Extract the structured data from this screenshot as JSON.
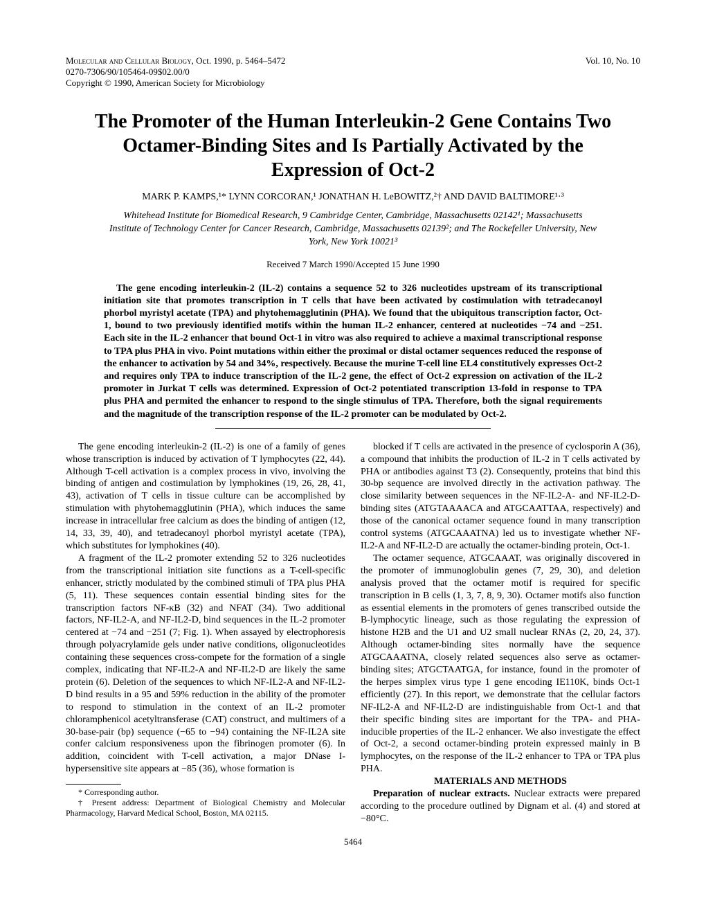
{
  "header": {
    "journal": "Molecular and Cellular Biology",
    "issue_date": ", Oct. 1990, p. 5464–5472",
    "issn_line": "0270-7306/90/105464-09$02.00/0",
    "copyright": "Copyright © 1990, American Society for Microbiology",
    "vol": "Vol. 10, No. 10"
  },
  "title": "The Promoter of the Human Interleukin-2 Gene Contains Two Octamer-Binding Sites and Is Partially Activated by the Expression of Oct-2",
  "authors": "MARK P. KAMPS,¹* LYNN CORCORAN,¹ JONATHAN H. LeBOWITZ,²† AND DAVID BALTIMORE¹·³",
  "affiliations": "Whitehead Institute for Biomedical Research, 9 Cambridge Center, Cambridge, Massachusetts 02142¹; Massachusetts Institute of Technology Center for Cancer Research, Cambridge, Massachusetts 02139²; and The Rockefeller University, New York, New York 10021³",
  "received": "Received 7 March 1990/Accepted 15 June 1990",
  "abstract": "The gene encoding interleukin-2 (IL-2) contains a sequence 52 to 326 nucleotides upstream of its transcriptional initiation site that promotes transcription in T cells that have been activated by costimulation with tetradecanoyl phorbol myristyl acetate (TPA) and phytohemagglutinin (PHA). We found that the ubiquitous transcription factor, Oct-1, bound to two previously identified motifs within the human IL-2 enhancer, centered at nucleotides −74 and −251. Each site in the IL-2 enhancer that bound Oct-1 in vitro was also required to achieve a maximal transcriptional response to TPA plus PHA in vivo. Point mutations within either the proximal or distal octamer sequences reduced the response of the enhancer to activation by 54 and 34%, respectively. Because the murine T-cell line EL4 constitutively expresses Oct-2 and requires only TPA to induce transcription of the IL-2 gene, the effect of Oct-2 expression on activation of the IL-2 promoter in Jurkat T cells was determined. Expression of Oct-2 potentiated transcription 13-fold in response to TPA plus PHA and permited the enhancer to respond to the single stimulus of TPA. Therefore, both the signal requirements and the magnitude of the transcription response of the IL-2 promoter can be modulated by Oct-2.",
  "body": {
    "p1": "The gene encoding interleukin-2 (IL-2) is one of a family of genes whose transcription is induced by activation of T lymphocytes (22, 44). Although T-cell activation is a complex process in vivo, involving the binding of antigen and costimulation by lymphokines (19, 26, 28, 41, 43), activation of T cells in tissue culture can be accomplished by stimulation with phytohemagglutinin (PHA), which induces the same increase in intracellular free calcium as does the binding of antigen (12, 14, 33, 39, 40), and tetradecanoyl phorbol myristyl acetate (TPA), which substitutes for lymphokines (40).",
    "p2": "A fragment of the IL-2 promoter extending 52 to 326 nucleotides from the transcriptional initiation site functions as a T-cell-specific enhancer, strictly modulated by the combined stimuli of TPA plus PHA (5, 11). These sequences contain essential binding sites for the transcription factors NF-κB (32) and NFAT (34). Two additional factors, NF-IL2-A, and NF-IL2-D, bind sequences in the IL-2 promoter centered at −74 and −251 (7; Fig. 1). When assayed by electrophoresis through polyacrylamide gels under native conditions, oligonucleotides containing these sequences cross-compete for the formation of a single complex, indicating that NF-IL2-A and NF-IL2-D are likely the same protein (6). Deletion of the sequences to which NF-IL2-A and NF-IL2-D bind results in a 95 and 59% reduction in the ability of the promoter to respond to stimulation in the context of an IL-2 promoter chloramphenicol acetyltransferase (CAT) construct, and multimers of a 30-base-pair (bp) sequence (−65 to −94) containing the NF-IL2A site confer calcium responsiveness upon the fibrinogen promoter (6). In addition, coincident with T-cell activation, a major DNase I-hypersensitive site appears at −85 (36), whose formation is",
    "p3": "blocked if T cells are activated in the presence of cyclosporin A (36), a compound that inhibits the production of IL-2 in T cells activated by PHA or antibodies against T3 (2). Consequently, proteins that bind this 30-bp sequence are involved directly in the activation pathway. The close similarity between sequences in the NF-IL2-A- and NF-IL2-D-binding sites (ATGTAAAACA and ATGCAATTAA, respectively) and those of the canonical octamer sequence found in many transcription control systems (ATGCAAATNA) led us to investigate whether NF-IL2-A and NF-IL2-D are actually the octamer-binding protein, Oct-1.",
    "p4": "The octamer sequence, ATGCAAAT, was originally discovered in the promoter of immunoglobulin genes (7, 29, 30), and deletion analysis proved that the octamer motif is required for specific transcription in B cells (1, 3, 7, 8, 9, 30). Octamer motifs also function as essential elements in the promoters of genes transcribed outside the B-lymphocytic lineage, such as those regulating the expression of histone H2B and the U1 and U2 small nuclear RNAs (2, 20, 24, 37). Although octamer-binding sites normally have the sequence ATGCAAATNA, closely related sequences also serve as octamer-binding sites; ATGCTAATGA, for instance, found in the promoter of the herpes simplex virus type 1 gene encoding IE110K, binds Oct-1 efficiently (27). In this report, we demonstrate that the cellular factors NF-IL2-A and NF-IL2-D are indistinguishable from Oct-1 and that their specific binding sites are important for the TPA- and PHA-inducible properties of the IL-2 enhancer. We also investigate the effect of Oct-2, a second octamer-binding protein expressed mainly in B lymphocytes, on the response of the IL-2 enhancer to TPA or TPA plus PHA.",
    "materials_heading": "MATERIALS AND METHODS",
    "p5_label": "Preparation of nuclear extracts. ",
    "p5": "Nuclear extracts were prepared according to the procedure outlined by Dignam et al. (4) and stored at −80°C."
  },
  "footnotes": {
    "f1": "* Corresponding author.",
    "f2": "† Present address: Department of Biological Chemistry and Molecular Pharmacology, Harvard Medical School, Boston, MA 02115."
  },
  "page_number": "5464"
}
